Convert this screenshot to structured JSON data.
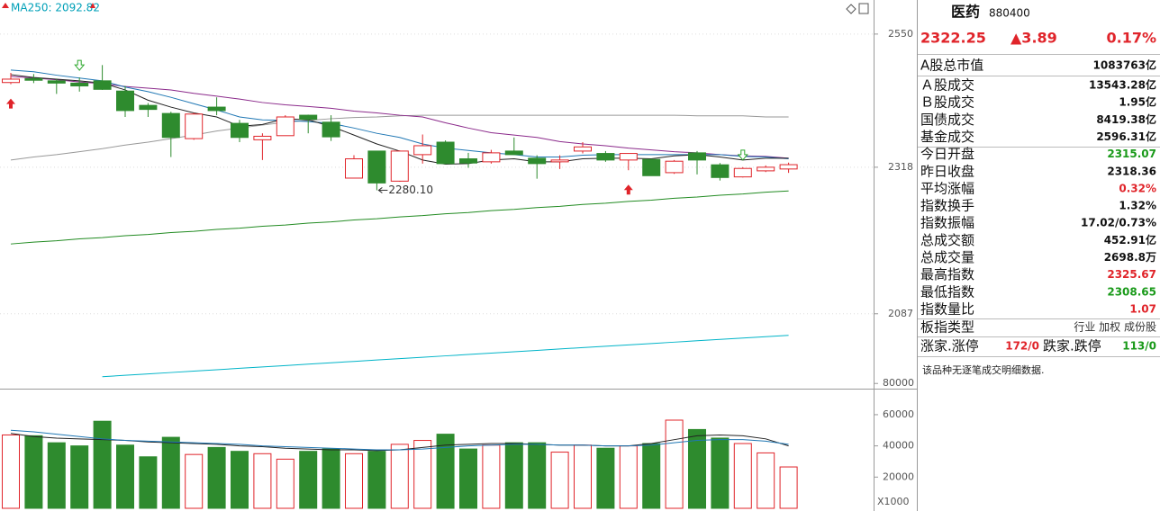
{
  "chart_data": [
    {
      "type": "candlestick",
      "header": "MA250: 2092.82",
      "log": true,
      "grid": true,
      "up_color": "#e0242a",
      "down_color": "#2e8b2e",
      "categories": [
        null,
        null,
        null,
        null,
        null,
        null,
        null,
        null,
        null,
        null,
        null,
        null,
        null,
        null,
        null,
        null,
        null,
        null,
        null,
        null,
        null,
        null,
        null,
        null,
        null,
        null,
        null,
        null,
        null,
        null,
        null,
        null,
        null,
        null,
        null
      ],
      "open": [
        2463,
        2470,
        2466,
        2462,
        2466,
        2448,
        2423,
        2409,
        2366,
        2420,
        2392,
        2364,
        2371,
        2406,
        2394,
        2300,
        2345,
        2295,
        2339,
        2360,
        2332,
        2327,
        2345,
        2333,
        2327,
        2345,
        2341,
        2330,
        2331,
        2309,
        2342,
        2322,
        2302,
        2312,
        2315.07
      ],
      "high": [
        2480,
        2478,
        2470,
        2472,
        2494,
        2457,
        2427,
        2412,
        2410,
        2437,
        2398,
        2375,
        2406,
        2407,
        2406,
        2338,
        2345,
        2346,
        2373,
        2363,
        2342,
        2347,
        2368,
        2338,
        2338,
        2360,
        2345,
        2341,
        2332,
        2330,
        2345,
        2325,
        2318,
        2321,
        2325.67
      ],
      "low": [
        2460,
        2462,
        2443,
        2447,
        2450,
        2403,
        2403,
        2335,
        2364,
        2406,
        2360,
        2330,
        2371,
        2375,
        2362,
        2300,
        2280.1,
        2294,
        2324,
        2323,
        2317,
        2324,
        2339,
        2299,
        2315,
        2341,
        2327,
        2313,
        2304,
        2307,
        2306,
        2296,
        2301,
        2310,
        2308.65
      ],
      "close": [
        2469,
        2467,
        2462,
        2457,
        2451,
        2414,
        2416,
        2368,
        2408,
        2414,
        2368,
        2370,
        2403,
        2399,
        2369,
        2332,
        2292,
        2345,
        2354,
        2324,
        2325,
        2342,
        2339,
        2324,
        2330,
        2352,
        2330,
        2341,
        2304,
        2328,
        2330,
        2301,
        2316,
        2318,
        2322.25
      ],
      "low_labels": [
        null,
        null,
        null,
        null,
        null,
        null,
        null,
        null,
        null,
        null,
        null,
        null,
        null,
        null,
        null,
        null,
        "2280.10",
        null,
        null,
        null,
        null,
        null,
        null,
        null,
        null,
        null,
        null,
        null,
        null,
        null,
        null,
        null,
        null,
        null,
        null
      ],
      "lines": [
        {
          "color": "#00b4c8",
          "values": [
            null,
            null,
            null,
            null,
            1995,
            1997,
            1999,
            2001,
            2003,
            2005,
            2007,
            2009,
            2011,
            2013,
            2015,
            2017,
            2019,
            2021,
            2023,
            2025,
            2027,
            2029,
            2031,
            2033,
            2035,
            2037,
            2039,
            2041,
            2043,
            2045,
            2047,
            2049,
            2051,
            2053,
            2055
          ]
        },
        {
          "color": "#228b22",
          "values": [
            2194,
            2197,
            2199,
            2202,
            2204,
            2207,
            2209,
            2212,
            2214,
            2217,
            2219,
            2222,
            2224,
            2227,
            2229,
            2232,
            2234,
            2237,
            2239,
            2242,
            2244,
            2247,
            2249,
            2252,
            2254,
            2257,
            2259,
            2262,
            2264,
            2267,
            2269,
            2272,
            2274,
            2277,
            2279
          ]
        },
        {
          "color": "#999999",
          "values": [
            2330,
            2335,
            2339,
            2344,
            2349,
            2355,
            2360,
            2366,
            2372,
            2379,
            2384,
            2389,
            2394,
            2397,
            2400,
            2402,
            2403,
            2405,
            2406,
            2406,
            2406,
            2406,
            2406,
            2406,
            2406,
            2406,
            2406,
            2406,
            2406,
            2406,
            2405,
            2405,
            2405,
            2403,
            2403
          ]
        },
        {
          "color": "#8b2a8b",
          "values": [
            2474,
            2471,
            2468,
            2464,
            2461,
            2456,
            2453,
            2450,
            2444,
            2439,
            2434,
            2428,
            2424,
            2421,
            2418,
            2413,
            2410,
            2406,
            2403,
            2393,
            2384,
            2376,
            2372,
            2368,
            2361,
            2357,
            2354,
            2350,
            2347,
            2344,
            2342,
            2339,
            2337,
            2336,
            2333
          ]
        },
        {
          "color": "#1f77b4",
          "values": [
            2485,
            2482,
            2476,
            2471,
            2466,
            2455,
            2447,
            2437,
            2426,
            2415,
            2403,
            2398,
            2397,
            2395,
            2392,
            2384,
            2375,
            2368,
            2357,
            2350,
            2346,
            2342,
            2339,
            2335,
            2335,
            2338,
            2339,
            2339,
            2339,
            2339,
            2339,
            2339,
            2336,
            2335,
            2332
          ]
        },
        {
          "color": "#222222",
          "values": [
            2477,
            2472,
            2469,
            2466,
            2462,
            2450,
            2432,
            2420,
            2410,
            2403,
            2387,
            2390,
            2400,
            2398,
            2387,
            2372,
            2357,
            2345,
            2330,
            2323,
            2324,
            2330,
            2332,
            2327,
            2327,
            2332,
            2333,
            2333,
            2332,
            2337,
            2339,
            2335,
            2330,
            2333,
            2333
          ]
        }
      ],
      "ylim": [
        1978,
        2613
      ],
      "yticks": [
        2550,
        2318,
        2087
      ]
    },
    {
      "type": "volume",
      "y_label": "X1000",
      "categories": [
        null,
        null,
        null,
        null,
        null,
        null,
        null,
        null,
        null,
        null,
        null,
        null,
        null,
        null,
        null,
        null,
        null,
        null,
        null,
        null,
        null,
        null,
        null,
        null,
        null,
        null,
        null,
        null,
        null,
        null,
        null,
        null,
        null,
        null,
        null
      ],
      "values": [
        47000,
        46500,
        42000,
        40000,
        55800,
        40500,
        33000,
        45500,
        34500,
        39000,
        36500,
        35000,
        31500,
        36500,
        38000,
        35000,
        36500,
        41000,
        43500,
        47500,
        38000,
        40500,
        42000,
        42000,
        36000,
        40500,
        38500,
        40000,
        41500,
        56500,
        50500,
        45000,
        41500,
        35500,
        26500
      ],
      "lines": [
        {
          "color": "#222222",
          "values": [
            48000,
            46000,
            45000,
            44500,
            44000,
            43500,
            42500,
            42000,
            41500,
            41000,
            40000,
            39500,
            38500,
            38000,
            37500,
            37500,
            37000,
            37500,
            39000,
            40500,
            41000,
            41500,
            41500,
            41000,
            40500,
            40500,
            40000,
            40000,
            41500,
            44000,
            46500,
            47000,
            46500,
            44500,
            40000
          ]
        },
        {
          "color": "#1f77b4",
          "values": [
            50000,
            49000,
            47500,
            46000,
            44500,
            43500,
            43000,
            42500,
            42000,
            41500,
            41000,
            40000,
            39500,
            39000,
            38500,
            38000,
            37500,
            37500,
            38000,
            39000,
            40000,
            40500,
            41000,
            41000,
            40500,
            40500,
            40000,
            40000,
            40500,
            42000,
            43500,
            44000,
            44000,
            43000,
            41000
          ]
        }
      ],
      "ylim": [
        0,
        84000
      ],
      "yticks": [
        80000,
        60000,
        40000,
        20000
      ]
    }
  ],
  "panel": {
    "title": "医药",
    "code": "880400",
    "price": "2322.25",
    "change": "▲3.89",
    "percent": "0.17%",
    "rows": [
      {
        "label": "A股总市值",
        "value": "1083763亿",
        "color": "#111111"
      },
      {
        "label": "Ａ股成交",
        "value": "13543.28亿",
        "color": "#111111"
      },
      {
        "label": "Ｂ股成交",
        "value": "1.95亿",
        "color": "#111111"
      },
      {
        "label": "国债成交",
        "value": "8419.38亿",
        "color": "#111111"
      },
      {
        "label": "基金成交",
        "value": "2596.31亿",
        "color": "#111111"
      },
      {
        "label": "今日开盘",
        "value": "2315.07",
        "color": "#1a9a1a"
      },
      {
        "label": "昨日收盘",
        "value": "2318.36",
        "color": "#111111"
      },
      {
        "label": "平均涨幅",
        "value": "0.32%",
        "color": "#e0242a"
      },
      {
        "label": "指数换手",
        "value": "1.32%",
        "color": "#111111"
      },
      {
        "label": "指数振幅",
        "value": "17.02/0.73%",
        "color": "#111111"
      },
      {
        "label": "总成交额",
        "value": "452.91亿",
        "color": "#111111"
      },
      {
        "label": "总成交量",
        "value": "2698.8万",
        "color": "#111111"
      },
      {
        "label": "最高指数",
        "value": "2325.67",
        "color": "#e0242a"
      },
      {
        "label": "最低指数",
        "value": "2308.65",
        "color": "#1a9a1a"
      },
      {
        "label": "指数量比",
        "value": "1.07",
        "color": "#e0242a"
      }
    ],
    "type_label": "板指类型",
    "type_value": "行业 加权 成份股",
    "up_label": "涨家.涨停",
    "up_value": "172/0",
    "down_label": "跌家.跌停",
    "down_value": "113/0",
    "note": "该品种无逐笔成交明细数据."
  }
}
